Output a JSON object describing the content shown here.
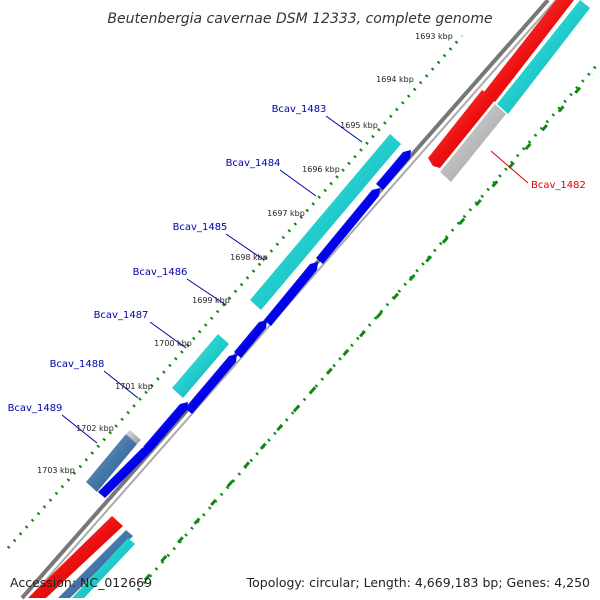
{
  "title": "Beutenbergia cavernae DSM 12333, complete genome",
  "accession": "Accession: NC_012669",
  "summary": "Topology: circular; Length: 4,669,183 bp; Genes: 4,250",
  "colors": {
    "forward_cds": "#0000ee",
    "rna_like": "#22cccc",
    "red_feature": "#ee1111",
    "grey_feature": "#bbbbbb",
    "backbone": "#888888",
    "ticks": "#118811",
    "gene_label": "#0000aa",
    "gene_label_highlight": "#dd0000"
  },
  "ticks": [
    {
      "label": "1693 kbp"
    },
    {
      "label": "1694 kbp"
    },
    {
      "label": "1695 kbp"
    },
    {
      "label": "1696 kbp"
    },
    {
      "label": "1697 kbp"
    },
    {
      "label": "1698 kbp"
    },
    {
      "label": "1699 kbp"
    },
    {
      "label": "1700 kbp"
    },
    {
      "label": "1701 kbp"
    },
    {
      "label": "1702 kbp"
    },
    {
      "label": "1703 kbp"
    }
  ],
  "genes": [
    {
      "label": "Bcav_1482",
      "highlight": true
    },
    {
      "label": "Bcav_1483",
      "highlight": false
    },
    {
      "label": "Bcav_1484",
      "highlight": false
    },
    {
      "label": "Bcav_1485",
      "highlight": false
    },
    {
      "label": "Bcav_1486",
      "highlight": false
    },
    {
      "label": "Bcav_1487",
      "highlight": false
    },
    {
      "label": "Bcav_1488",
      "highlight": false
    },
    {
      "label": "Bcav_1489",
      "highlight": false
    }
  ]
}
